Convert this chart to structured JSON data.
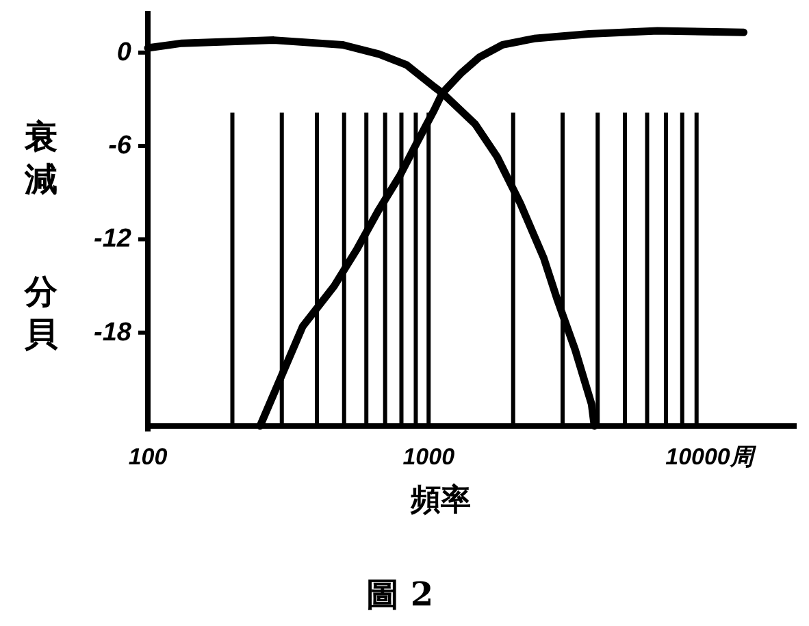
{
  "chart_data": {
    "type": "line",
    "xlabel": "頻率",
    "ylabel": "衰減分貝",
    "annotations": [
      "圖 2"
    ],
    "log": "x",
    "xlim": [
      100,
      20000
    ],
    "xticks": [
      100,
      1000,
      {
        "value": 10000,
        "label": "10000周"
      }
    ],
    "ylim": [
      -24,
      2.5
    ],
    "yticks": [
      0,
      -6,
      -12,
      -18
    ],
    "series": [
      {
        "color": "#000000",
        "x": [
          100,
          132,
          281,
          493,
          667,
          836,
          1046,
          1119,
          1465,
          1754,
          2122,
          2570,
          2875,
          3325,
          3805,
          3893
        ],
        "values": [
          0.3,
          0.6,
          0.8,
          0.5,
          -0.1,
          -0.8,
          -2.2,
          -2.6,
          -4.6,
          -6.7,
          -9.7,
          -13.2,
          -15.9,
          -19.1,
          -22.6,
          -24
        ]
      },
      {
        "color": "#000000",
        "x": [
          251,
          356,
          461,
          557,
          660,
          790,
          914,
          1046,
          1119,
          1309,
          1515,
          1834,
          2375,
          3722,
          6530,
          13250
        ],
        "values": [
          -24,
          -17.6,
          -15,
          -12.6,
          -10.2,
          -7.9,
          -5.7,
          -3.7,
          -2.6,
          -1.3,
          -0.3,
          0.5,
          0.9,
          1.2,
          1.4,
          1.3
        ]
      }
    ],
    "ref_lines": [
      {
        "axis": "x",
        "value": 200
      },
      {
        "axis": "x",
        "value": 300
      },
      {
        "axis": "x",
        "value": 400
      },
      {
        "axis": "x",
        "value": 500
      },
      {
        "axis": "x",
        "value": 600
      },
      {
        "axis": "x",
        "value": 700
      },
      {
        "axis": "x",
        "value": 800
      },
      {
        "axis": "x",
        "value": 900
      },
      {
        "axis": "x",
        "value": 1000
      },
      {
        "axis": "x",
        "value": 2000
      },
      {
        "axis": "x",
        "value": 3000
      },
      {
        "axis": "x",
        "value": 4000
      },
      {
        "axis": "x",
        "value": 5000
      },
      {
        "axis": "x",
        "value": 6000
      },
      {
        "axis": "x",
        "value": 7000
      },
      {
        "axis": "x",
        "value": 8000
      },
      {
        "axis": "x",
        "value": 9000
      }
    ]
  }
}
